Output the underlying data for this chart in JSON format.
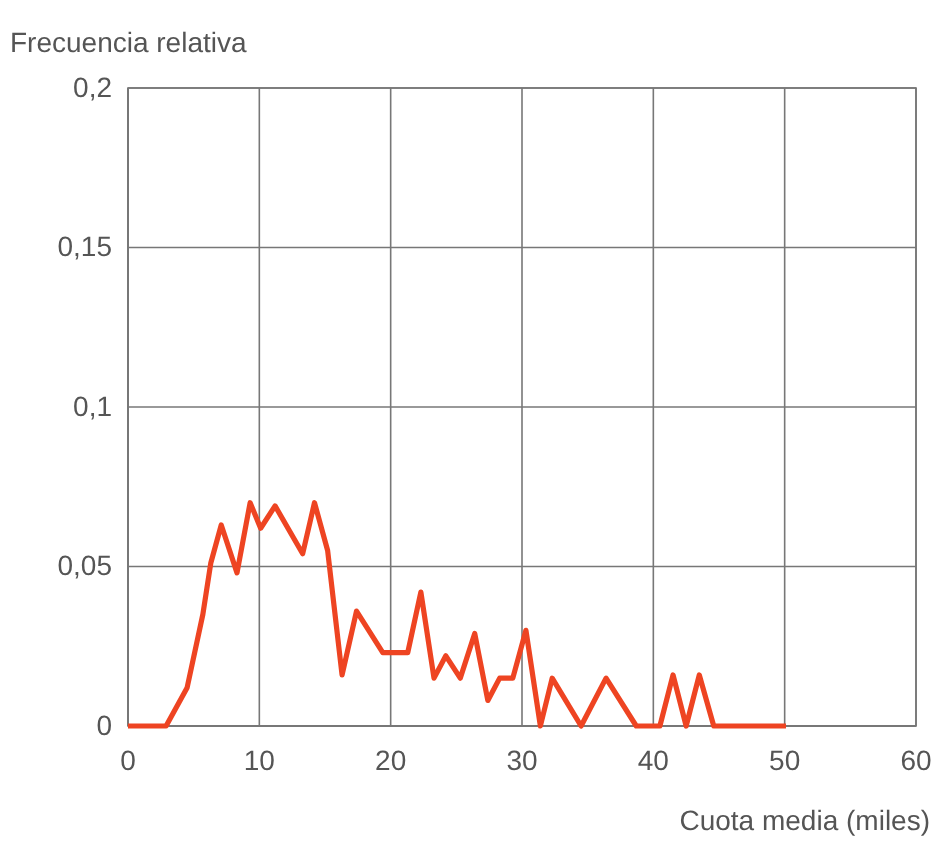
{
  "chart_data": {
    "type": "line",
    "xlabel": "Cuota media (miles)",
    "ylabel": "Frecuencia relativa",
    "x": [
      0,
      2.9,
      4.5,
      5.7,
      6.3,
      7.1,
      8.3,
      9.3,
      10.1,
      11.2,
      13.3,
      14.2,
      15.2,
      16.3,
      17.4,
      19.4,
      21.3,
      22.3,
      23.3,
      24.2,
      25.3,
      26.4,
      27.4,
      28.3,
      29.3,
      30.3,
      31.4,
      32.3,
      34.5,
      36.4,
      38.7,
      40.5,
      41.5,
      42.5,
      43.5,
      44.6,
      50.1
    ],
    "series": [
      {
        "color": "#ee4422",
        "values": [
          0,
          0,
          0.012,
          0.035,
          0.051,
          0.063,
          0.048,
          0.07,
          0.062,
          0.069,
          0.054,
          0.07,
          0.055,
          0.016,
          0.036,
          0.023,
          0.023,
          0.042,
          0.015,
          0.022,
          0.015,
          0.029,
          0.008,
          0.015,
          0.015,
          0.03,
          0,
          0.015,
          0,
          0.015,
          0,
          0,
          0.016,
          0,
          0.016,
          0,
          0
        ]
      }
    ],
    "xlim": [
      0,
      60
    ],
    "xticks": [
      0,
      10,
      20,
      30,
      40,
      50,
      60
    ],
    "ylim": [
      0,
      0.2
    ],
    "yticks": [
      {
        "value": 0,
        "label": "0"
      },
      {
        "value": 0.05,
        "label": "0,05"
      },
      {
        "value": 0.1,
        "label": "0,1"
      },
      {
        "value": 0.15,
        "label": "0,15"
      },
      {
        "value": 0.2,
        "label": "0,2"
      }
    ],
    "grid": true,
    "marker": "none",
    "line_style": "solid"
  }
}
